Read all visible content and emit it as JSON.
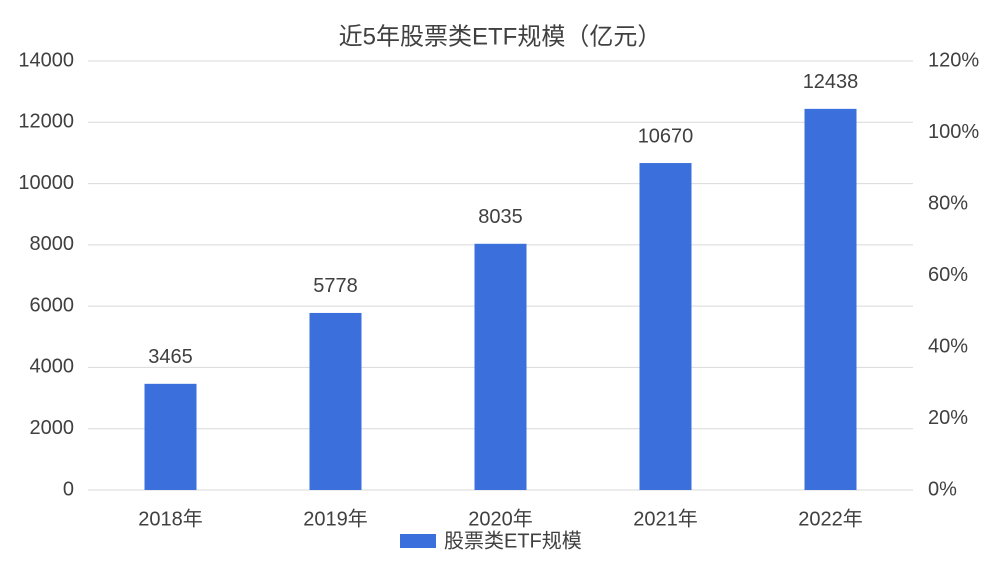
{
  "chart_data": {
    "type": "bar",
    "title": "近5年股票类ETF规模（亿元）",
    "categories": [
      "2018年",
      "2019年",
      "2020年",
      "2021年",
      "2022年"
    ],
    "series": [
      {
        "name": "股票类ETF规模",
        "color": "#3a6fdc",
        "values": [
          3465,
          5778,
          8035,
          10670,
          12438
        ]
      }
    ],
    "ylim": [
      0,
      14000
    ],
    "yticks": [
      0,
      2000,
      4000,
      6000,
      8000,
      10000,
      12000,
      14000
    ],
    "y2lim": [
      0,
      120
    ],
    "y2ticks": [
      {
        "value": 0,
        "label": "0%"
      },
      {
        "value": 20,
        "label": "20%"
      },
      {
        "value": 40,
        "label": "40%"
      },
      {
        "value": 60,
        "label": "60%"
      },
      {
        "value": 80,
        "label": "80%"
      },
      {
        "value": 100,
        "label": "100%"
      },
      {
        "value": 120,
        "label": "120%"
      }
    ],
    "grid": true,
    "legend": "bottom"
  }
}
